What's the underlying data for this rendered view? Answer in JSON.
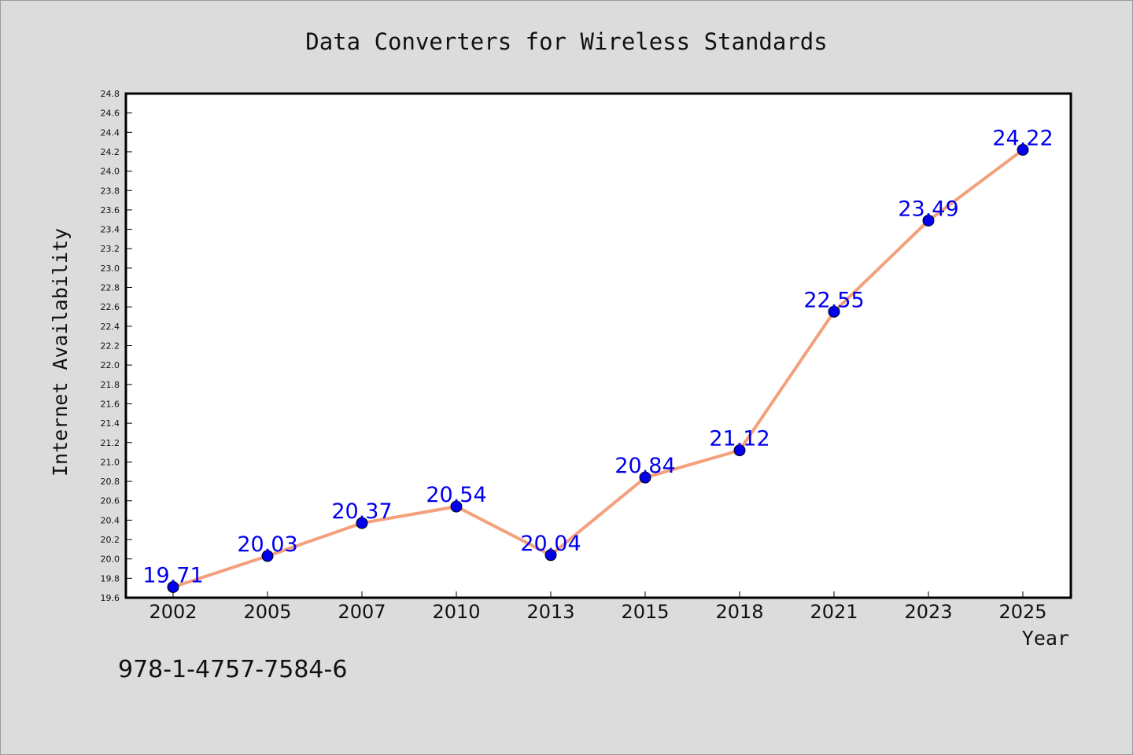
{
  "chart_data": {
    "type": "line",
    "title": "Data Converters for Wireless Standards",
    "xlabel": "Year",
    "ylabel": "Internet Availability",
    "categories": [
      "2002",
      "2005",
      "2007",
      "2010",
      "2013",
      "2015",
      "2018",
      "2021",
      "2023",
      "2025"
    ],
    "series": [
      {
        "values": [
          19.71,
          20.03,
          20.37,
          20.54,
          20.04,
          20.84,
          21.12,
          22.55,
          23.49,
          24.22
        ],
        "line_color": "#f4a07c",
        "marker_color": "#0000ee",
        "label_color": "#0000ee"
      }
    ],
    "ylim": [
      19.6,
      24.8
    ],
    "yticks": [
      "19.6",
      "19.8",
      "20.0",
      "20.2",
      "20.4",
      "20.6",
      "20.8",
      "21.0",
      "21.2",
      "21.4",
      "21.6",
      "21.8",
      "22.0",
      "22.2",
      "22.4",
      "22.6",
      "22.8",
      "23.0",
      "23.2",
      "23.4",
      "23.6",
      "23.8",
      "24.0",
      "24.2",
      "24.4",
      "24.6",
      "24.8"
    ],
    "data_labels": [
      "19.71",
      "20.03",
      "20.37",
      "20.54",
      "20.04",
      "20.84",
      "21.12",
      "22.55",
      "23.49",
      "24.22"
    ],
    "grid": false,
    "legend": "none"
  },
  "annotation": {
    "isbn": "978-1-4757-7584-6"
  }
}
